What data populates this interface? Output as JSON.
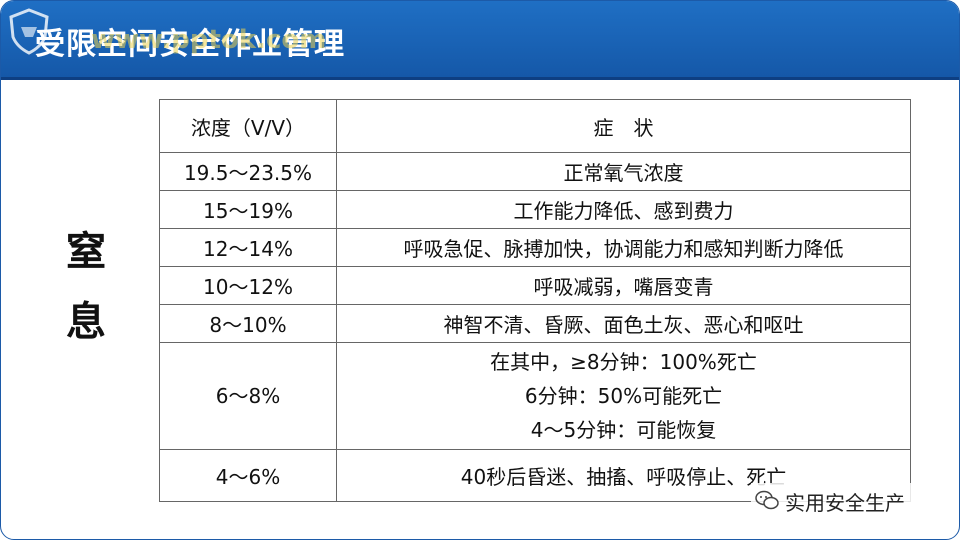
{
  "header": {
    "title": "受限空间安全作业管理",
    "watermark_url": "www.pptok.com"
  },
  "side_label": [
    "窒",
    "息"
  ],
  "table": {
    "headers": [
      "浓度（V/V）",
      "症　状"
    ],
    "rows": [
      {
        "concentration": "19.5～23.5%",
        "symptoms": [
          "正常氧气浓度"
        ]
      },
      {
        "concentration": "15～19%",
        "symptoms": [
          "工作能力降低、感到费力"
        ]
      },
      {
        "concentration": "12～14%",
        "symptoms": [
          "呼吸急促、脉搏加快，协调能力和感知判断力降低"
        ]
      },
      {
        "concentration": "10～12%",
        "symptoms": [
          "呼吸减弱，嘴唇变青"
        ]
      },
      {
        "concentration": "8～10%",
        "symptoms": [
          "神智不清、昏厥、面色土灰、恶心和呕吐"
        ]
      },
      {
        "concentration": "6～8%",
        "symptoms": [
          "在其中，≥8分钟：100%死亡",
          "6分钟：50%可能死亡",
          "4～5分钟：可能恢复"
        ]
      },
      {
        "concentration": "4～6%",
        "symptoms": [
          "40秒后昏迷、抽搐、呼吸停止、死亡"
        ]
      }
    ]
  },
  "wechat_watermark": {
    "text": "实用安全生产",
    "icon": "wechat-icon"
  },
  "colors": {
    "header_blue": "#1f6fc4",
    "border": "#666666"
  }
}
